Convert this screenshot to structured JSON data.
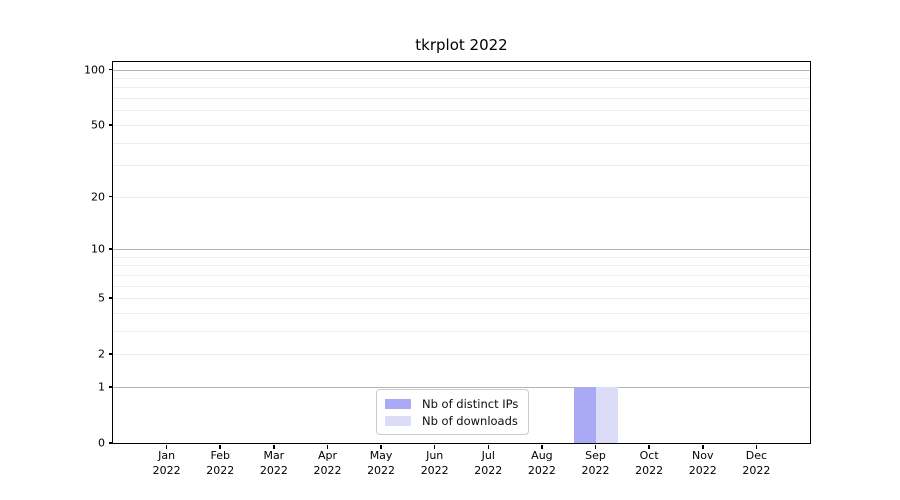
{
  "chart_data": {
    "type": "bar",
    "title": "tkrplot 2022",
    "categories": [
      "Jan",
      "Feb",
      "Mar",
      "Apr",
      "May",
      "Jun",
      "Jul",
      "Aug",
      "Sep",
      "Oct",
      "Nov",
      "Dec"
    ],
    "x_year_label": "2022",
    "series": [
      {
        "name": "Nb of distinct IPs",
        "color": "#a9a9f6",
        "values": [
          0,
          0,
          0,
          0,
          0,
          0,
          0,
          0,
          1,
          0,
          0,
          0
        ]
      },
      {
        "name": "Nb of downloads",
        "color": "#dcdcf9",
        "values": [
          0,
          0,
          0,
          0,
          0,
          0,
          0,
          0,
          1,
          0,
          0,
          0
        ]
      }
    ],
    "y_axis": {
      "scale": "log1p",
      "tick_values": [
        0,
        1,
        2,
        5,
        10,
        20,
        50,
        100
      ],
      "tick_labels": [
        "0",
        "1",
        "2",
        "5",
        "10",
        "20",
        "50",
        "100"
      ],
      "max_value": 110,
      "major_gridlines": [
        1,
        10,
        100
      ],
      "minor_gridlines": [
        2,
        3,
        4,
        5,
        6,
        7,
        8,
        9,
        20,
        30,
        40,
        50,
        60,
        70,
        80,
        90
      ]
    },
    "legend": {
      "position": "lower center"
    },
    "colors": {
      "major_grid": "#b5b5b5",
      "minor_grid": "#ececec",
      "axis": "#000000",
      "background": "#ffffff"
    }
  }
}
